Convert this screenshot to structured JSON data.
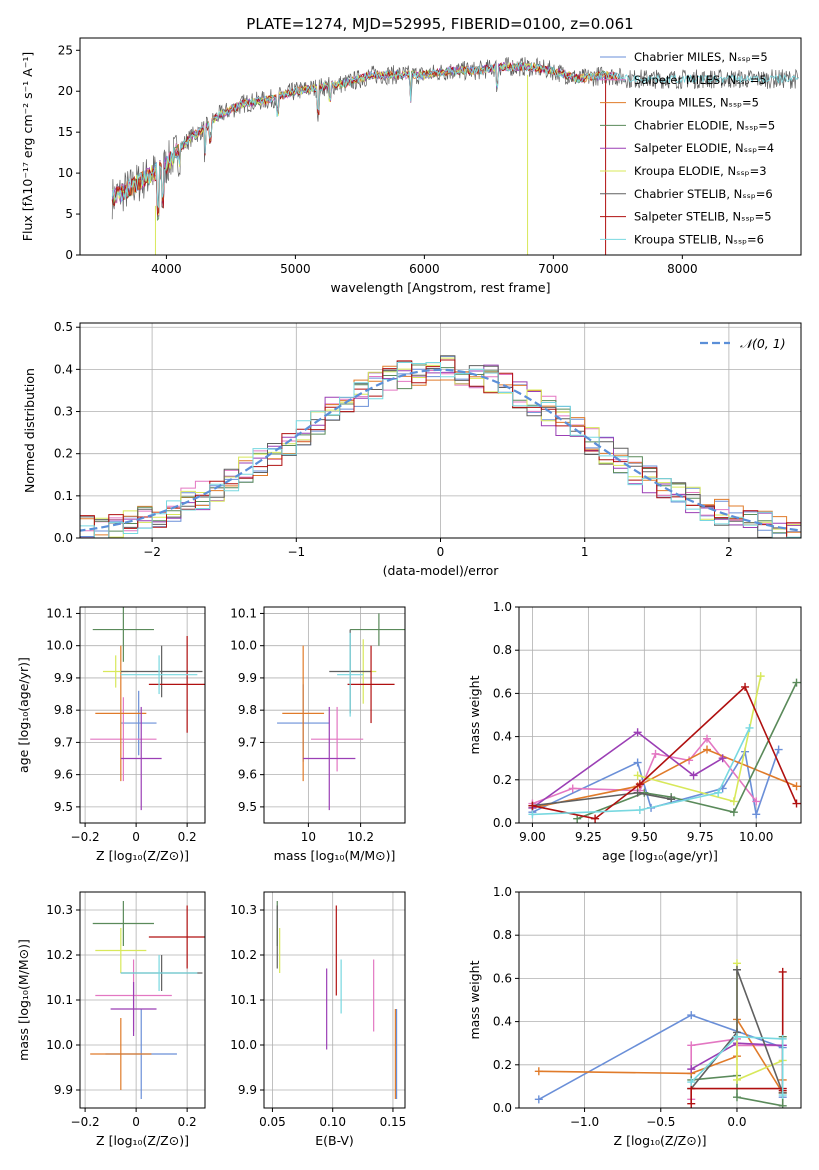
{
  "palette": [
    "#6a8fd8",
    "#e377c2",
    "#e07b2a",
    "#5a8a5a",
    "#9b3fb5",
    "#d8e85a",
    "#606060",
    "#b01010",
    "#78d8e0"
  ],
  "chart_data": [
    {
      "id": "spectrum",
      "type": "line",
      "title": "PLATE=1274, MJD=52995, FIBERID=0100, z=0.061",
      "xlabel": "wavelength [Angstrom, rest frame]",
      "ylabel": "Flux [fλ10⁻¹⁷ erg cm⁻² s⁻¹ A⁻¹]",
      "xlim": [
        3330,
        8920
      ],
      "ylim": [
        0,
        26.5
      ],
      "xticks": [
        4000,
        5000,
        6000,
        7000,
        8000
      ],
      "yticks": [
        0,
        5,
        10,
        15,
        20,
        25
      ],
      "legend_position": "lower right",
      "legend": [
        {
          "label": "Chabrier MILES, Nₛₛₚ=5",
          "color": "#6a8fd8"
        },
        {
          "label": "Salpeter MILES, Nₛₛₚ=5",
          "color": "#e377c2"
        },
        {
          "label": "Kroupa MILES, Nₛₛₚ=5",
          "color": "#e07b2a"
        },
        {
          "label": "Chabrier ELODIE, Nₛₛₚ=5",
          "color": "#5a8a5a"
        },
        {
          "label": "Salpeter ELODIE, Nₛₛₚ=4",
          "color": "#9b3fb5"
        },
        {
          "label": "Kroupa ELODIE, Nₛₛₚ=3",
          "color": "#d8e85a"
        },
        {
          "label": "Chabrier STELIB, Nₛₛₚ=6",
          "color": "#606060"
        },
        {
          "label": "Salpeter STELIB, Nₛₛₚ=5",
          "color": "#b01010"
        },
        {
          "label": "Kroupa STELIB, Nₛₛₚ=6",
          "color": "#78d8e0"
        }
      ],
      "continuum": {
        "x": [
          3580,
          3700,
          3800,
          3900,
          4000,
          4100,
          4200,
          4300,
          4400,
          4600,
          4800,
          5000,
          5200,
          5400,
          5600,
          5800,
          6000,
          6200,
          6400,
          6600,
          6800,
          7000,
          7200,
          7400,
          7600,
          8000,
          8500,
          8900
        ],
        "y": [
          7,
          8,
          9,
          10,
          11,
          13,
          14.5,
          15.5,
          17,
          18.5,
          19,
          20,
          20.5,
          21,
          22,
          22,
          22,
          22.5,
          22.5,
          23,
          23,
          22.5,
          21.5,
          22,
          21.5,
          21.5,
          21.5,
          21.5
        ]
      }
    },
    {
      "id": "residuals",
      "type": "line",
      "xlabel": "(data-model)/error",
      "ylabel": "Normed distribution",
      "xlim": [
        -2.5,
        2.5
      ],
      "ylim": [
        0,
        0.51
      ],
      "xticks": [
        -2,
        -1,
        0,
        1,
        2
      ],
      "yticks": [
        0.0,
        0.1,
        0.2,
        0.3,
        0.4,
        0.5
      ],
      "legend": [
        {
          "label": "𝒩(0, 1)",
          "color": "#5b8fd8",
          "style": "dashed"
        }
      ],
      "legend_position": "upper right",
      "hist_bin_width": 0.1
    },
    {
      "id": "age-vs-Z",
      "type": "scatter",
      "xlabel": "Z [log₁₀(Z/Z⊙)]",
      "ylabel": "age  [log₁₀(age/yr)]",
      "xlim": [
        -0.22,
        0.27
      ],
      "ylim": [
        9.45,
        10.12
      ],
      "xticks": [
        -0.2,
        0.0,
        0.2
      ],
      "yticks": [
        9.5,
        9.6,
        9.7,
        9.8,
        9.9,
        10.0,
        10.1
      ],
      "points": [
        {
          "x": 0.01,
          "y": 9.76,
          "xerr": 0.07,
          "yerr": 0.1,
          "color": "#6a8fd8"
        },
        {
          "x": -0.05,
          "y": 9.71,
          "xerr": 0.13,
          "yerr": 0.13,
          "color": "#e377c2"
        },
        {
          "x": -0.06,
          "y": 9.79,
          "xerr": 0.1,
          "yerr": 0.21,
          "color": "#e07b2a"
        },
        {
          "x": -0.05,
          "y": 10.05,
          "xerr": 0.12,
          "yerr": 0.1,
          "color": "#5a8a5a"
        },
        {
          "x": 0.02,
          "y": 9.65,
          "xerr": 0.08,
          "yerr": 0.16,
          "color": "#9b3fb5"
        },
        {
          "x": -0.08,
          "y": 9.92,
          "xerr": 0.05,
          "yerr": 0.05,
          "color": "#d8e85a"
        },
        {
          "x": 0.1,
          "y": 9.92,
          "xerr": 0.16,
          "yerr": 0.08,
          "color": "#606060"
        },
        {
          "x": 0.2,
          "y": 9.88,
          "xerr": 0.15,
          "yerr": 0.15,
          "color": "#b01010"
        },
        {
          "x": 0.09,
          "y": 9.91,
          "xerr": 0.15,
          "yerr": 0.06,
          "color": "#78d8e0"
        }
      ]
    },
    {
      "id": "age-vs-mass",
      "type": "scatter",
      "xlabel": "mass [log₁₀(M/M⊙)]",
      "xlim": [
        9.83,
        10.37
      ],
      "ylim": [
        9.45,
        10.12
      ],
      "xticks": [
        10.0,
        10.2
      ],
      "yticks": [
        9.5,
        9.6,
        9.7,
        9.8,
        9.9,
        10.0,
        10.1
      ],
      "points": [
        {
          "x": 9.98,
          "y": 9.76,
          "xerr": 0.1,
          "yerr": 0.12,
          "color": "#6a8fd8"
        },
        {
          "x": 10.11,
          "y": 9.71,
          "xerr": 0.1,
          "yerr": 0.1,
          "color": "#e377c2"
        },
        {
          "x": 9.98,
          "y": 9.79,
          "xerr": 0.08,
          "yerr": 0.21,
          "color": "#e07b2a"
        },
        {
          "x": 10.27,
          "y": 10.05,
          "xerr": 0.11,
          "yerr": 0.05,
          "color": "#5a8a5a"
        },
        {
          "x": 10.08,
          "y": 9.65,
          "xerr": 0.1,
          "yerr": 0.16,
          "color": "#9b3fb5"
        },
        {
          "x": 10.21,
          "y": 9.92,
          "xerr": 0.05,
          "yerr": 0.1,
          "color": "#d8e85a"
        },
        {
          "x": 10.16,
          "y": 9.92,
          "xerr": 0.08,
          "yerr": 0.13,
          "color": "#606060"
        },
        {
          "x": 10.24,
          "y": 9.88,
          "xerr": 0.09,
          "yerr": 0.12,
          "color": "#b01010"
        },
        {
          "x": 10.16,
          "y": 9.91,
          "xerr": 0.05,
          "yerr": 0.13,
          "color": "#78d8e0"
        }
      ]
    },
    {
      "id": "mass-weight-vs-age",
      "type": "line",
      "xlabel": "age  [log₁₀(age/yr)]",
      "ylabel": "mass weight",
      "xlim": [
        8.94,
        10.2
      ],
      "ylim": [
        0,
        1.0
      ],
      "xticks": [
        9.0,
        9.25,
        9.5,
        9.75,
        10.0
      ],
      "xticklabels": [
        "9.00",
        "9.25",
        "9.50",
        "9.75",
        "10.00"
      ],
      "yticks": [
        0.0,
        0.2,
        0.4,
        0.6,
        0.8,
        1.0
      ],
      "series": [
        {
          "color": "#6a8fd8",
          "x": [
            9.0,
            9.47,
            9.53,
            9.85,
            9.95,
            10.0,
            10.1
          ],
          "y": [
            0.05,
            0.28,
            0.07,
            0.16,
            0.33,
            0.04,
            0.34
          ]
        },
        {
          "color": "#e377c2",
          "x": [
            9.0,
            9.18,
            9.48,
            9.55,
            9.7,
            9.78,
            10.0
          ],
          "y": [
            0.09,
            0.16,
            0.15,
            0.32,
            0.29,
            0.39,
            0.1
          ]
        },
        {
          "color": "#e07b2a",
          "x": [
            9.0,
            9.47,
            9.78,
            10.18
          ],
          "y": [
            0.07,
            0.17,
            0.34,
            0.17
          ]
        },
        {
          "color": "#5a8a5a",
          "x": [
            9.2,
            9.5,
            9.62,
            9.9,
            10.18
          ],
          "y": [
            0.02,
            0.14,
            0.12,
            0.05,
            0.65
          ]
        },
        {
          "color": "#9b3fb5",
          "x": [
            9.0,
            9.47,
            9.72,
            9.85
          ],
          "y": [
            0.07,
            0.42,
            0.22,
            0.3
          ]
        },
        {
          "color": "#d8e85a",
          "x": [
            9.47,
            9.9,
            10.02
          ],
          "y": [
            0.22,
            0.1,
            0.68
          ]
        },
        {
          "color": "#606060",
          "x": [
            9.0,
            9.47,
            9.62
          ],
          "y": [
            0.08,
            0.14,
            0.11
          ]
        },
        {
          "color": "#b01010",
          "x": [
            9.0,
            9.28,
            9.48,
            9.95,
            10.18
          ],
          "y": [
            0.08,
            0.02,
            0.18,
            0.63,
            0.09
          ]
        },
        {
          "color": "#78d8e0",
          "x": [
            9.0,
            9.48,
            9.83,
            9.97
          ],
          "y": [
            0.04,
            0.06,
            0.14,
            0.44
          ]
        }
      ]
    },
    {
      "id": "mass-vs-Z",
      "type": "scatter",
      "xlabel": "Z [log₁₀(Z/Z⊙)]",
      "ylabel": "mass [log₁₀(M/M⊙)]",
      "xlim": [
        -0.22,
        0.27
      ],
      "ylim": [
        9.86,
        10.34
      ],
      "xticks": [
        -0.2,
        0.0,
        0.2
      ],
      "yticks": [
        9.9,
        10.0,
        10.1,
        10.2,
        10.3
      ],
      "points": [
        {
          "x": 0.02,
          "y": 9.98,
          "xerr": 0.14,
          "yerr": 0.1,
          "color": "#6a8fd8"
        },
        {
          "x": -0.01,
          "y": 10.11,
          "xerr": 0.15,
          "yerr": 0.08,
          "color": "#e377c2"
        },
        {
          "x": -0.06,
          "y": 9.98,
          "xerr": 0.12,
          "yerr": 0.08,
          "color": "#e07b2a"
        },
        {
          "x": -0.05,
          "y": 10.27,
          "xerr": 0.12,
          "yerr": 0.05,
          "color": "#5a8a5a"
        },
        {
          "x": -0.01,
          "y": 10.08,
          "xerr": 0.09,
          "yerr": 0.06,
          "color": "#9b3fb5"
        },
        {
          "x": -0.06,
          "y": 10.21,
          "xerr": 0.1,
          "yerr": 0.05,
          "color": "#d8e85a"
        },
        {
          "x": 0.1,
          "y": 10.16,
          "xerr": 0.16,
          "yerr": 0.04,
          "color": "#606060"
        },
        {
          "x": 0.2,
          "y": 10.24,
          "xerr": 0.15,
          "yerr": 0.07,
          "color": "#b01010"
        },
        {
          "x": 0.09,
          "y": 10.16,
          "xerr": 0.15,
          "yerr": 0.04,
          "color": "#78d8e0"
        }
      ]
    },
    {
      "id": "mass-vs-ebv",
      "type": "scatter",
      "xlabel": "E(B-V)",
      "xlim": [
        0.043,
        0.16
      ],
      "ylim": [
        9.86,
        10.34
      ],
      "xticks": [
        0.05,
        0.1,
        0.15
      ],
      "xticklabels": [
        "0.05",
        "0.10",
        "0.15"
      ],
      "yticks": [
        9.9,
        10.0,
        10.1,
        10.2,
        10.3
      ],
      "points": [
        {
          "x": 0.153,
          "y": 9.98,
          "yerr": 0.1,
          "color": "#6a8fd8"
        },
        {
          "x": 0.134,
          "y": 10.11,
          "yerr": 0.08,
          "color": "#e377c2"
        },
        {
          "x": 0.152,
          "y": 9.98,
          "yerr": 0.1,
          "color": "#e07b2a"
        },
        {
          "x": 0.054,
          "y": 10.27,
          "yerr": 0.05,
          "color": "#5a8a5a"
        },
        {
          "x": 0.095,
          "y": 10.08,
          "yerr": 0.09,
          "color": "#9b3fb5"
        },
        {
          "x": 0.056,
          "y": 10.21,
          "yerr": 0.05,
          "color": "#d8e85a"
        },
        {
          "x": 0.054,
          "y": 10.24,
          "yerr": 0.07,
          "color": "#606060"
        },
        {
          "x": 0.103,
          "y": 10.21,
          "yerr": 0.1,
          "color": "#b01010"
        },
        {
          "x": 0.107,
          "y": 10.13,
          "yerr": 0.06,
          "color": "#78d8e0"
        }
      ]
    },
    {
      "id": "mass-weight-vs-Z",
      "type": "line",
      "xlabel": "Z [log₁₀(Z/Z⊙)]",
      "ylabel": "mass weight",
      "xlim": [
        -1.43,
        0.42
      ],
      "ylim": [
        0,
        1.0
      ],
      "xticks": [
        -1.0,
        -0.5,
        0.0
      ],
      "xticklabels": [
        "−1.0",
        "−0.5",
        "0.0"
      ],
      "yticks": [
        0.0,
        0.2,
        0.4,
        0.6,
        0.8,
        1.0
      ],
      "series": [
        {
          "color": "#6a8fd8",
          "x": [
            -1.3,
            -0.3,
            0.3,
            0.3
          ],
          "y": [
            0.04,
            0.43,
            0.28,
            0.05
          ]
        },
        {
          "color": "#e377c2",
          "x": [
            -0.3,
            -0.3,
            0.0,
            0.0,
            0.3,
            0.3
          ],
          "y": [
            0.04,
            0.29,
            0.32,
            0.29,
            0.29,
            0.09
          ]
        },
        {
          "color": "#e07b2a",
          "x": [
            -1.3,
            -0.3,
            0.0,
            0.0,
            0.3,
            0.3
          ],
          "y": [
            0.17,
            0.16,
            0.24,
            0.41,
            0.07,
            0.13
          ]
        },
        {
          "color": "#5a8a5a",
          "x": [
            -0.3,
            0.0,
            0.0,
            0.3,
            0.3
          ],
          "y": [
            0.13,
            0.15,
            0.05,
            0.01,
            0.33
          ]
        },
        {
          "color": "#9b3fb5",
          "x": [
            -0.3,
            0.0,
            0.3
          ],
          "y": [
            0.18,
            0.3,
            0.29
          ]
        },
        {
          "color": "#d8e85a",
          "x": [
            0.0,
            0.0,
            0.3
          ],
          "y": [
            0.67,
            0.13,
            0.22
          ]
        },
        {
          "color": "#606060",
          "x": [
            -0.3,
            0.0,
            0.0,
            0.3
          ],
          "y": [
            0.09,
            0.35,
            0.64,
            0.07
          ]
        },
        {
          "color": "#b01010",
          "x": [
            -0.3,
            -0.3,
            0.3,
            0.3,
            0.3
          ],
          "y": [
            0.02,
            0.09,
            0.09,
            0.63,
            0.08
          ]
        },
        {
          "color": "#78d8e0",
          "x": [
            -0.3,
            0.0,
            0.3,
            0.3
          ],
          "y": [
            0.12,
            0.33,
            0.32,
            0.06
          ]
        }
      ]
    }
  ]
}
